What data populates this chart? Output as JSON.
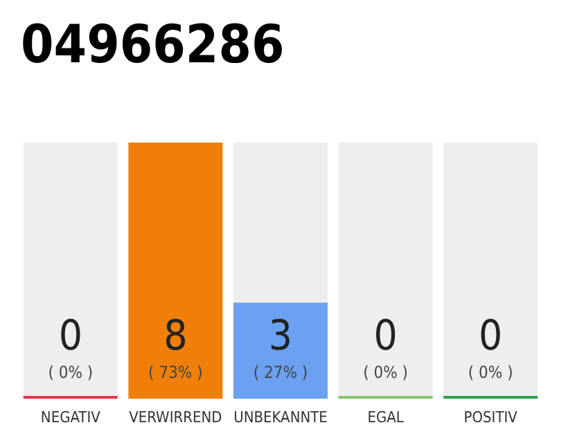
{
  "chart_data": {
    "type": "bar",
    "title": "04966286",
    "categories": [
      "NEGATIV",
      "VERWIRREND",
      "UNBEKANNTE",
      "EGAL",
      "POSITIV"
    ],
    "values": [
      0,
      8,
      3,
      0,
      0
    ],
    "colors": [
      "#e8344a",
      "#f07f09",
      "#6ba1f0",
      "#8bc66b",
      "#2ea04f"
    ],
    "value_labels": [
      "0\n( 0% )",
      "8\n( 73% )",
      "3\n( 27% )",
      "0\n( 0% )",
      "0\n( 0% )"
    ]
  }
}
